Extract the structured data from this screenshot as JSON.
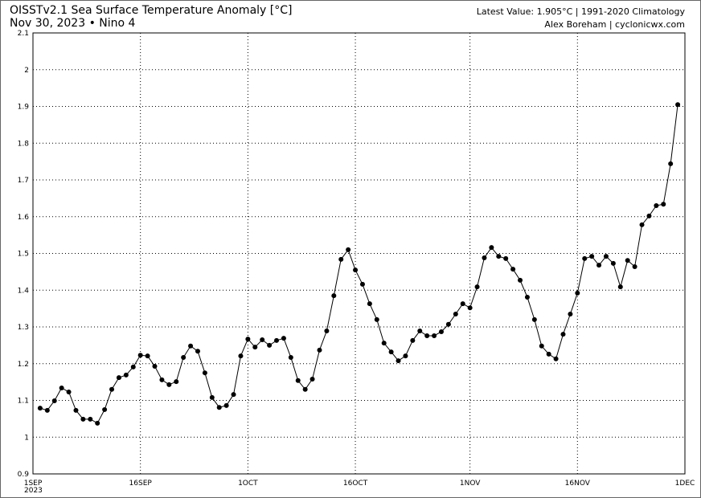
{
  "chart_data": {
    "type": "line",
    "title": "OISSTv2.1 Sea Surface Temperature Anomaly [°C]",
    "subtitle": "Nov 30, 2023 • Nino 4",
    "annotations": [
      "Latest Value: 1.905°C | 1991-2020 Climatology",
      "Alex Boreham | cyclonicwx.com"
    ],
    "year_label": "2023",
    "x": [
      1,
      2,
      3,
      4,
      5,
      6,
      7,
      8,
      9,
      10,
      11,
      12,
      13,
      14,
      15,
      16,
      17,
      18,
      19,
      20,
      21,
      22,
      23,
      24,
      25,
      26,
      27,
      28,
      29,
      30,
      31,
      32,
      33,
      34,
      35,
      36,
      37,
      38,
      39,
      40,
      41,
      42,
      43,
      44,
      45,
      46,
      47,
      48,
      49,
      50,
      51,
      52,
      53,
      54,
      55,
      56,
      57,
      58,
      59,
      60,
      61,
      62,
      63,
      64,
      65,
      66,
      67,
      68,
      69,
      70,
      71,
      72,
      73,
      74,
      75,
      76,
      77,
      78,
      79,
      80,
      81,
      82,
      83,
      84,
      85,
      86,
      87,
      88,
      89,
      90
    ],
    "series": [
      {
        "name": "Nino 4",
        "color": "#000000",
        "values": [
          1.079,
          1.073,
          1.099,
          1.134,
          1.123,
          1.073,
          1.049,
          1.049,
          1.038,
          1.075,
          1.13,
          1.162,
          1.169,
          1.191,
          1.223,
          1.221,
          1.193,
          1.156,
          1.143,
          1.151,
          1.217,
          1.248,
          1.234,
          1.175,
          1.108,
          1.081,
          1.086,
          1.116,
          1.221,
          1.267,
          1.245,
          1.265,
          1.25,
          1.263,
          1.269,
          1.217,
          1.154,
          1.13,
          1.158,
          1.237,
          1.289,
          1.385,
          1.484,
          1.51,
          1.455,
          1.416,
          1.363,
          1.32,
          1.256,
          1.232,
          1.208,
          1.221,
          1.263,
          1.289,
          1.276,
          1.276,
          1.287,
          1.307,
          1.335,
          1.363,
          1.352,
          1.409,
          1.488,
          1.516,
          1.492,
          1.486,
          1.457,
          1.427,
          1.381,
          1.32,
          1.248,
          1.226,
          1.213,
          1.28,
          1.335,
          1.392,
          1.486,
          1.492,
          1.468,
          1.492,
          1.473,
          1.409,
          1.481,
          1.464,
          1.578,
          1.602,
          1.63,
          1.634,
          1.744,
          1.905
        ]
      }
    ],
    "xlim": [
      0,
      91
    ],
    "xticks": [
      {
        "value": 0,
        "label": "1SEP"
      },
      {
        "value": 15,
        "label": "16SEP"
      },
      {
        "value": 30,
        "label": "1OCT"
      },
      {
        "value": 45,
        "label": "16OCT"
      },
      {
        "value": 61,
        "label": "1NOV"
      },
      {
        "value": 76,
        "label": "16NOV"
      },
      {
        "value": 91,
        "label": "1DEC"
      }
    ],
    "ylim": [
      0.9,
      2.1
    ],
    "yticks": [
      0.9,
      1,
      1.1,
      1.2,
      1.3,
      1.4,
      1.5,
      1.6,
      1.7,
      1.8,
      1.9,
      2,
      2.1
    ],
    "grid": true
  }
}
